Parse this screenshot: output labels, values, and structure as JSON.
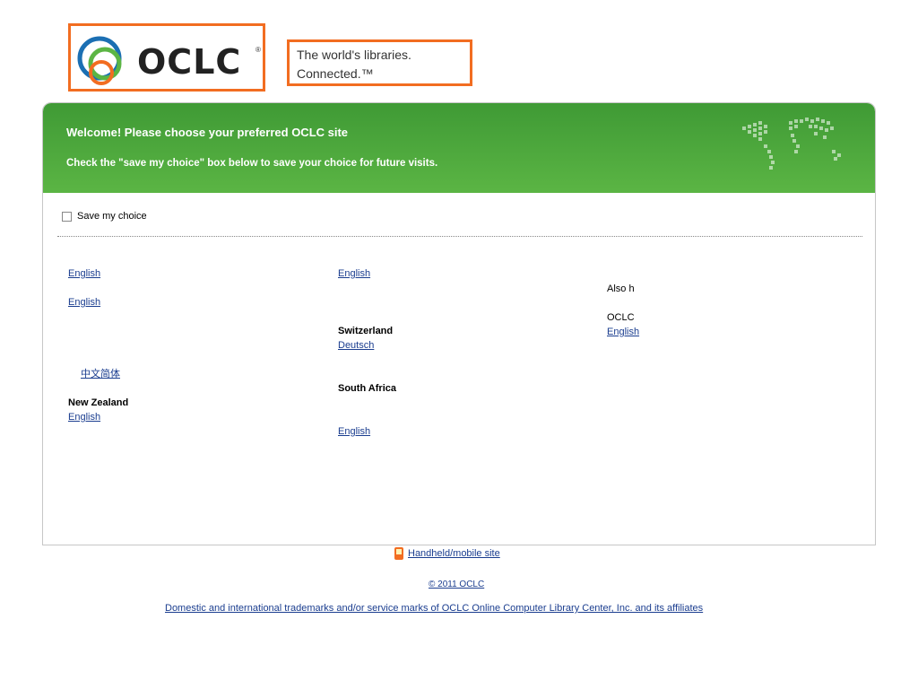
{
  "header": {
    "logo_text": "OCLC",
    "logo_registered": "®",
    "tagline_line1": "The world's libraries.",
    "tagline_line2": "Connected.™"
  },
  "banner": {
    "welcome": "Welcome! Please choose your preferred OCLC site",
    "instruction": "Check the \"save my choice\" box below to save your choice for future visits.",
    "map_text": "",
    "colors": {
      "banner_top": "#3f9a35",
      "banner_bottom": "#5bb544",
      "accent": "#f26d21"
    }
  },
  "save_choice": {
    "label": "Save my choice",
    "checked": false
  },
  "columns": {
    "col1": {
      "region_heading": "",
      "region_sub": "",
      "first_link": "English",
      "first_text": "",
      "links_row": [
        "English",
        "",
        ""
      ],
      "text_a": "",
      "links_row2": [
        "",
        "",
        ""
      ],
      "heading_b": "",
      "text_b": "",
      "links_row3": [
        "",
        "",
        "中文简体"
      ],
      "text_c": "",
      "nz_label": "New Zealand",
      "nz_link": "English"
    },
    "col2": {
      "heading_a": "",
      "heading_b": "",
      "link_a": "English",
      "text_a": "",
      "link_b": "",
      "text_b": "",
      "switzerland": "Switzerland",
      "link_c": "Deutsch",
      "text_c": "",
      "link_d": "",
      "south_africa": "South Africa",
      "link_e": "",
      "text_e": "",
      "link_f": "English"
    },
    "col3": {
      "text_a": "",
      "also_text": "Also h",
      "text_b": "",
      "oclc_text": "OCLC",
      "link": "English"
    }
  },
  "footer": {
    "handheld_link": "Handheld/mobile site",
    "copyright_link": "© 2011 OCLC",
    "trademarks_link": "Domestic and international trademarks and/or service marks of OCLC Online Computer Library Center, Inc. and its affiliates"
  }
}
